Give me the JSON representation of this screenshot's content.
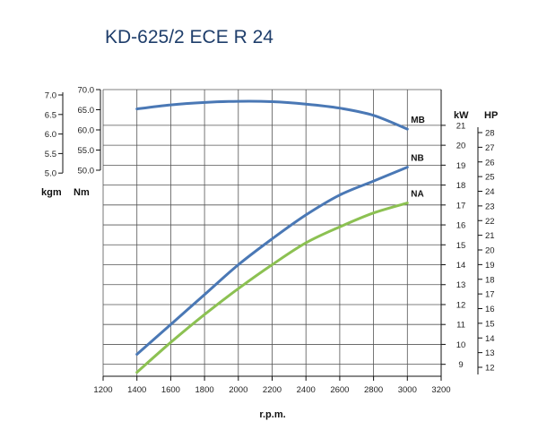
{
  "chart_data": {
    "type": "line",
    "title": "KD-625/2 ECE R 24",
    "xlabel": "r.p.m.",
    "x_ticks": [
      1200,
      1400,
      1600,
      1800,
      2000,
      2200,
      2400,
      2600,
      2800,
      3000,
      3200
    ],
    "xlim": [
      1200,
      3200
    ],
    "grid": true,
    "torque_axis": {
      "kgm_unit": "kgm",
      "nm_unit": "Nm",
      "kgm_ticks": [
        "7.0",
        "6.5",
        "6.0",
        "5.5",
        "5.0"
      ],
      "nm_ticks": [
        "70.0",
        "65.0",
        "60.0",
        "55.0",
        "50.0"
      ],
      "nm_range": [
        50,
        70
      ]
    },
    "power_axis": {
      "kw_unit": "kW",
      "hp_unit": "HP",
      "kw_ticks": [
        9,
        10,
        11,
        12,
        13,
        14,
        15,
        16,
        17,
        18,
        19,
        20,
        21
      ],
      "kw_range": [
        8.4,
        22.3
      ],
      "hp_ticks": [
        12,
        13,
        14,
        15,
        16,
        17,
        18,
        19,
        20,
        21,
        22,
        23,
        24,
        25,
        26,
        27,
        28
      ]
    },
    "series": [
      {
        "name": "MB",
        "axis": "torque_nm",
        "color": "#4a78b5",
        "x": [
          1400,
          1600,
          1800,
          2000,
          2200,
          2400,
          2600,
          2800,
          3000
        ],
        "y": [
          65.2,
          66.2,
          66.8,
          67.1,
          67.0,
          66.4,
          65.4,
          63.6,
          60.2
        ]
      },
      {
        "name": "NB",
        "axis": "power_kw",
        "color": "#4a78b5",
        "x": [
          1400,
          1600,
          1800,
          2000,
          2200,
          2400,
          2600,
          2800,
          3000
        ],
        "y": [
          9.5,
          11.0,
          12.5,
          14.0,
          15.3,
          16.5,
          17.5,
          18.2,
          18.9
        ]
      },
      {
        "name": "NA",
        "axis": "power_kw",
        "color": "#8cc152",
        "x": [
          1400,
          1600,
          1800,
          2000,
          2200,
          2400,
          2600,
          2800,
          3000
        ],
        "y": [
          8.6,
          10.1,
          11.5,
          12.8,
          14.0,
          15.1,
          15.9,
          16.6,
          17.1
        ]
      }
    ]
  }
}
